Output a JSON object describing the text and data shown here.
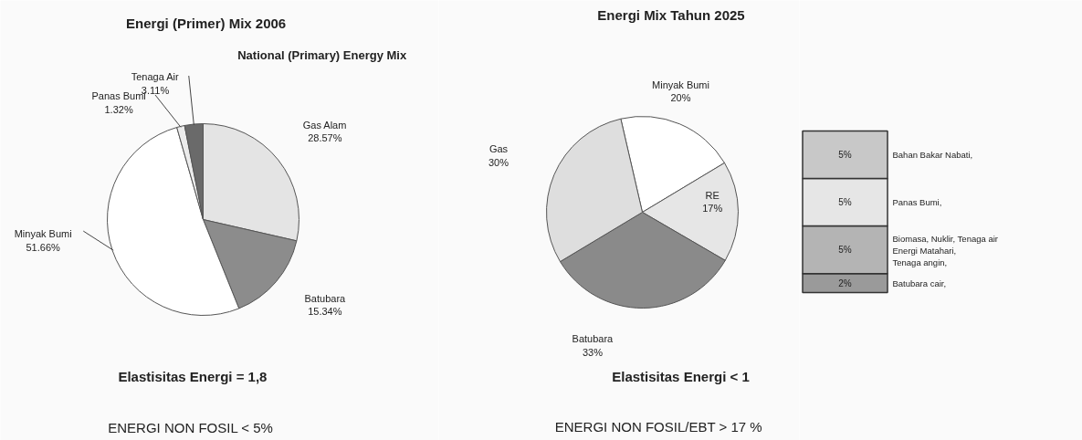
{
  "chart_data": [
    {
      "type": "pie",
      "title": "Energi (Primer) Mix 2006",
      "subtitle": "National (Primary) Energy Mix",
      "categories": [
        "Gas Alam",
        "Batubara",
        "Minyak Bumi",
        "Panas Bumi",
        "Tenaga Air"
      ],
      "values": [
        28.57,
        15.34,
        51.66,
        1.32,
        3.11
      ],
      "value_labels": [
        "28.57%",
        "15.34%",
        "51.66%",
        "1.32%",
        "3.11%"
      ],
      "colors": [
        "#e4e4e4",
        "#8c8c8c",
        "#ffffff",
        "#ececec",
        "#6a6a6a"
      ],
      "annotations": [
        "Elastisitas Energi = 1,8",
        "ENERGI NON FOSIL  < 5%"
      ]
    },
    {
      "type": "pie",
      "title": "Energi Mix Tahun 2025",
      "categories": [
        "Minyak Bumi",
        "RE",
        "Batubara",
        "Gas"
      ],
      "values": [
        20,
        17,
        33,
        30
      ],
      "value_labels": [
        "20%",
        "17%",
        "33%",
        "30%"
      ],
      "colors": [
        "#ffffff",
        "#e6e6e6",
        "#8a8a8a",
        "#dedede"
      ],
      "annotations": [
        "Elastisitas Energi < 1",
        "ENERGI NON FOSIL/EBT > 17 %"
      ]
    },
    {
      "type": "bar",
      "stacked": true,
      "tick_labels": false,
      "categories": [
        null
      ],
      "series": [
        {
          "name": "Batubara cair,",
          "color": "#9a9a9a",
          "values": [
            2
          ],
          "value_labels": [
            "2%"
          ]
        },
        {
          "name": "Biomasa, Nuklir, Tenaga air\nEnergi Matahari,\nTenaga angin,",
          "color": "#b4b4b4",
          "values": [
            5
          ],
          "value_labels": [
            "5%"
          ]
        },
        {
          "name": "Panas Bumi,",
          "color": "#e6e6e6",
          "values": [
            5
          ],
          "value_labels": [
            "5%"
          ]
        },
        {
          "name": "Bahan Bakar Nabati,",
          "color": "#c8c8c8",
          "values": [
            5
          ],
          "value_labels": [
            "5%"
          ]
        }
      ]
    }
  ]
}
